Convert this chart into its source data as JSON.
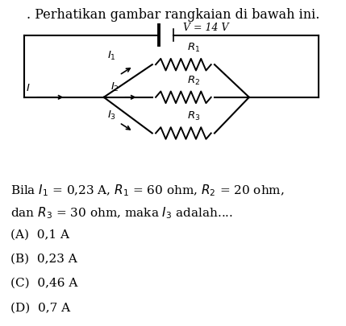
{
  "title": ". Perhatikan gambar rangkaian di bawah ini.",
  "voltage_label": "V = 14 V",
  "problem_text1": "Bila $I_1$ = 0,23 A, $R_1$ = 60 ohm, $R_2$ = 20 ohm,",
  "problem_text2": "dan $R_3$ = 30 ohm, maka $I_3$ adalah....",
  "options": [
    "(A)  0,1 A",
    "(B)  0,23 A",
    "(C)  0,46 A",
    "(D)  0,7 A"
  ],
  "bg_color": "#ffffff",
  "line_color": "#000000",
  "font_size_title": 11.5,
  "font_size_body": 11,
  "font_size_label": 9.5
}
